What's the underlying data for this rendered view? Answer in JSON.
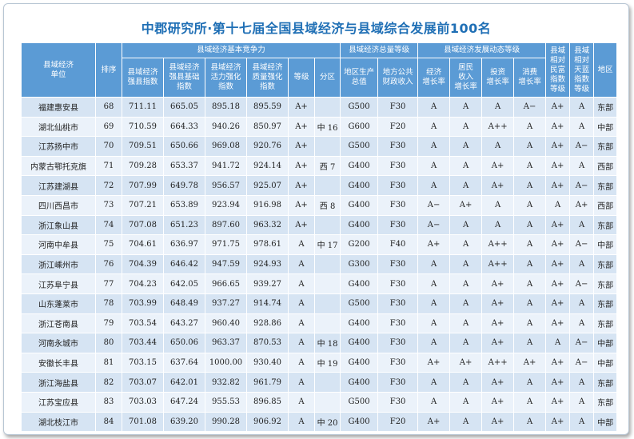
{
  "title": "中郡研究所·第十七届全国县域经济与县域综合发展前100名",
  "headers": {
    "unit": "县域经济\n单位",
    "rank": "排序",
    "group_basic": "县域经济基本竞争力",
    "strong": "县域经济\n强县指数",
    "base": "县域经济\n强县基础\n指数",
    "vitality": "县域经济\n活力强化\n指数",
    "quality": "县域经济\n质量强化\n指数",
    "grade": "等级",
    "subregion": "分区",
    "group_total": "县域经济总量等级",
    "gdp": "地区生产\n总值",
    "fiscal": "地方公共\n财政收入",
    "group_dynamic": "县域经济发展动态等级",
    "econ_growth": "经济\n增长率",
    "income_growth": "居民\n收入\n增长率",
    "invest_growth": "投资\n增长率",
    "consume_growth": "消费\n增长率",
    "wealth": "县域\n相对\n民富\n指数\n等级",
    "sky": "县域\n相对\n天蓝\n指数\n等级",
    "region": "地区"
  },
  "rows": [
    [
      "福建惠安县",
      "68",
      "711.11",
      "665.05",
      "895.18",
      "895.59",
      "A+",
      "",
      "G500",
      "F30",
      "A",
      "A",
      "A",
      "A−",
      "A+",
      "A",
      "东部"
    ],
    [
      "湖北仙桃市",
      "69",
      "710.59",
      "664.33",
      "940.26",
      "850.97",
      "A+",
      "中 16",
      "G600",
      "F20",
      "A",
      "A",
      "A++",
      "A",
      "A+",
      "A",
      "中部"
    ],
    [
      "江苏扬中市",
      "70",
      "709.51",
      "650.66",
      "969.08",
      "920.76",
      "A+",
      "",
      "G500",
      "F30",
      "A",
      "A",
      "A",
      "A",
      "A+",
      "A−",
      "东部"
    ],
    [
      "内蒙古鄂托克旗",
      "71",
      "709.28",
      "653.37",
      "941.72",
      "924.14",
      "A+",
      "西 7",
      "G400",
      "F30",
      "A",
      "A",
      "A+",
      "A",
      "A+",
      "A",
      "西部"
    ],
    [
      "江苏建湖县",
      "72",
      "707.99",
      "649.78",
      "956.57",
      "925.07",
      "A+",
      "",
      "G400",
      "F30",
      "A",
      "A",
      "A+",
      "A",
      "A+",
      "A−",
      "东部"
    ],
    [
      "四川西昌市",
      "73",
      "707.21",
      "653.89",
      "923.94",
      "916.98",
      "A+",
      "西 8",
      "G400",
      "F30",
      "A−",
      "A+",
      "A",
      "A",
      "A",
      "A+",
      "西部"
    ],
    [
      "浙江象山县",
      "74",
      "707.08",
      "651.23",
      "897.60",
      "963.32",
      "A+",
      "",
      "G400",
      "F30",
      "A−",
      "A",
      "A",
      "A",
      "A+",
      "A",
      "东部"
    ],
    [
      "河南中牟县",
      "75",
      "704.61",
      "636.97",
      "971.75",
      "978.61",
      "A",
      "中 17",
      "G200",
      "F40",
      "A+",
      "A",
      "A++",
      "A",
      "A+",
      "A−",
      "中部"
    ],
    [
      "浙江嵊州市",
      "76",
      "704.39",
      "646.42",
      "947.59",
      "924.93",
      "A",
      "",
      "G300",
      "F30",
      "A",
      "A",
      "A++",
      "A",
      "A+",
      "A",
      "东部"
    ],
    [
      "江苏阜宁县",
      "77",
      "704.23",
      "642.05",
      "966.65",
      "939.27",
      "A",
      "",
      "G400",
      "F30",
      "A",
      "A",
      "A+",
      "A",
      "A+",
      "A−",
      "东部"
    ],
    [
      "山东蓬莱市",
      "78",
      "703.99",
      "648.49",
      "937.27",
      "914.74",
      "A",
      "",
      "G500",
      "F30",
      "A",
      "A",
      "A+",
      "A",
      "A+",
      "A",
      "东部"
    ],
    [
      "浙江苍南县",
      "79",
      "703.54",
      "643.27",
      "960.40",
      "928.86",
      "A",
      "",
      "G400",
      "F30",
      "A",
      "A",
      "A+",
      "A",
      "A+",
      "A",
      "东部"
    ],
    [
      "河南永城市",
      "80",
      "703.44",
      "650.06",
      "963.37",
      "870.53",
      "A",
      "中 18",
      "G400",
      "F30",
      "A",
      "A",
      "A+",
      "A",
      "A",
      "A−",
      "中部"
    ],
    [
      "安徽长丰县",
      "81",
      "703.15",
      "637.64",
      "1000.00",
      "930.40",
      "A",
      "中 19",
      "G400",
      "F30",
      "A+",
      "A+",
      "A++",
      "A+",
      "A+",
      "A−",
      "中部"
    ],
    [
      "浙江海盐县",
      "82",
      "703.07",
      "642.01",
      "932.82",
      "961.79",
      "A",
      "",
      "G400",
      "F30",
      "A",
      "A",
      "A+",
      "A",
      "A+",
      "A",
      "东部"
    ],
    [
      "江苏宝应县",
      "83",
      "703.03",
      "647.24",
      "955.53",
      "896.85",
      "A",
      "",
      "G500",
      "F30",
      "A",
      "A",
      "A+",
      "A",
      "A+",
      "A",
      "东部"
    ],
    [
      "湖北枝江市",
      "84",
      "701.08",
      "639.20",
      "990.28",
      "906.92",
      "A",
      "中 20",
      "G400",
      "F20",
      "A+",
      "A",
      "A+",
      "A",
      "A+",
      "A",
      "中部"
    ]
  ]
}
